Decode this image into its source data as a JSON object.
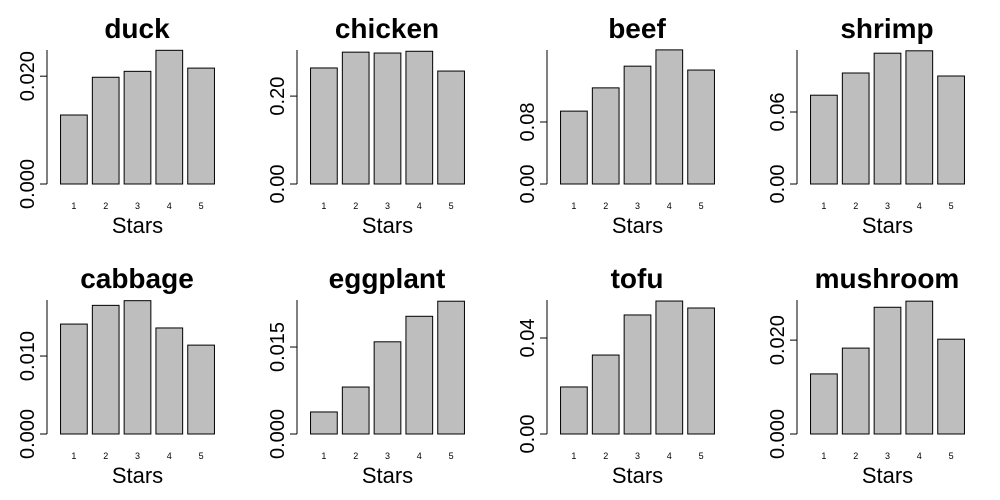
{
  "chart_data": [
    {
      "type": "bar",
      "title": "duck",
      "x_label": "Stars",
      "categories": [
        "1",
        "2",
        "3",
        "4",
        "5"
      ],
      "values": [
        0.0128,
        0.0198,
        0.0209,
        0.0248,
        0.0215
      ],
      "color": "#bebebe",
      "ylim": [
        0,
        0.0256
      ],
      "yticks": [
        {
          "value": 0,
          "label": "0.000"
        },
        {
          "value": 0.02,
          "label": "0.020"
        }
      ]
    },
    {
      "type": "bar",
      "title": "chicken",
      "x_label": "Stars",
      "categories": [
        "1",
        "2",
        "3",
        "4",
        "5"
      ],
      "values": [
        0.264,
        0.3,
        0.298,
        0.302,
        0.257
      ],
      "color": "#bebebe",
      "ylim": [
        0,
        0.314
      ],
      "yticks": [
        {
          "value": 0,
          "label": "0.00"
        },
        {
          "value": 0.2,
          "label": "0.20"
        }
      ]
    },
    {
      "type": "bar",
      "title": "beef",
      "x_label": "Stars",
      "categories": [
        "1",
        "2",
        "3",
        "4",
        "5"
      ],
      "values": [
        0.094,
        0.124,
        0.152,
        0.173,
        0.147
      ],
      "color": "#bebebe",
      "ylim": [
        0,
        0.178
      ],
      "yticks": [
        {
          "value": 0,
          "label": "0.00"
        },
        0.08
      ]
    },
    {
      "type": "bar",
      "title": "shrimp",
      "x_label": "Stars",
      "categories": [
        "1",
        "2",
        "3",
        "4",
        "5"
      ],
      "values": [
        0.074,
        0.0925,
        0.109,
        0.111,
        0.09
      ],
      "color": "#bebebe",
      "ylim": [
        0,
        0.115
      ],
      "yticks": [
        {
          "value": 0,
          "label": "0.00"
        },
        0.06
      ]
    },
    {
      "type": "bar",
      "title": "cabbage",
      "x_label": "Stars",
      "categories": [
        "1",
        "2",
        "3",
        "4",
        "5"
      ],
      "values": [
        0.0141,
        0.0165,
        0.0171,
        0.0136,
        0.0114
      ],
      "color": "#bebebe",
      "ylim": [
        0,
        0.0177
      ],
      "yticks": [
        {
          "value": 0,
          "label": "0.000"
        },
        {
          "value": 0.01,
          "label": "0.010"
        }
      ]
    },
    {
      "type": "bar",
      "title": "eggplant",
      "x_label": "Stars",
      "categories": [
        "1",
        "2",
        "3",
        "4",
        "5"
      ],
      "values": [
        0.0038,
        0.0081,
        0.0159,
        0.0203,
        0.0229
      ],
      "color": "#bebebe",
      "ylim": [
        0,
        0.0238
      ],
      "yticks": [
        {
          "value": 0,
          "label": "0.000"
        },
        0.015
      ]
    },
    {
      "type": "bar",
      "title": "tofu",
      "x_label": "Stars",
      "categories": [
        "1",
        "2",
        "3",
        "4",
        "5"
      ],
      "values": [
        0.0196,
        0.0329,
        0.0496,
        0.0554,
        0.0525
      ],
      "color": "#bebebe",
      "ylim": [
        0,
        0.0575
      ],
      "yticks": [
        {
          "value": 0,
          "label": "0.00"
        },
        0.04
      ]
    },
    {
      "type": "bar",
      "title": "mushroom",
      "x_label": "Stars",
      "categories": [
        "1",
        "2",
        "3",
        "4",
        "5"
      ],
      "values": [
        0.0128,
        0.0183,
        0.027,
        0.0283,
        0.0202
      ],
      "color": "#bebebe",
      "ylim": [
        0,
        0.0294
      ],
      "yticks": [
        {
          "value": 0,
          "label": "0.000"
        },
        {
          "value": 0.02,
          "label": "0.020"
        }
      ]
    }
  ]
}
